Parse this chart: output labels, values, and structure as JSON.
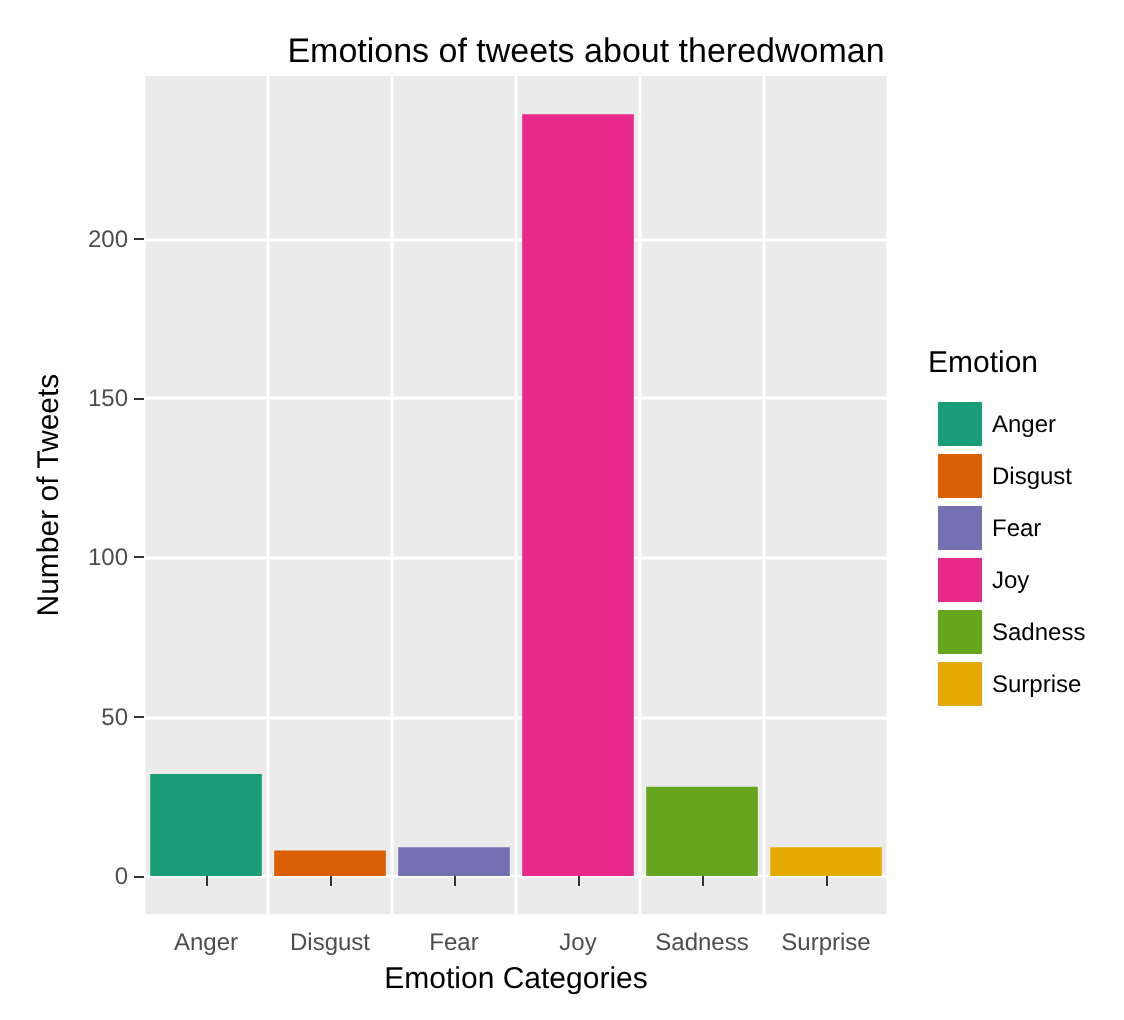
{
  "chart_data": {
    "type": "bar",
    "title": "Emotions of tweets about theredwoman",
    "xlabel": "Emotion Categories",
    "ylabel": "Number of Tweets",
    "legend_title": "Emotion",
    "categories": [
      "Anger",
      "Disgust",
      "Fear",
      "Joy",
      "Sadness",
      "Surprise"
    ],
    "series": [
      {
        "name": "Anger",
        "color": "#1b9e77",
        "values": [
          32,
          null,
          null,
          null,
          null,
          null
        ]
      },
      {
        "name": "Disgust",
        "color": "#d95f02",
        "values": [
          null,
          8,
          null,
          null,
          null,
          null
        ]
      },
      {
        "name": "Fear",
        "color": "#7570b3",
        "values": [
          null,
          null,
          9,
          null,
          null,
          null
        ]
      },
      {
        "name": "Joy",
        "color": "#e7298a",
        "values": [
          null,
          null,
          null,
          239,
          null,
          null
        ]
      },
      {
        "name": "Sadness",
        "color": "#66a61e",
        "values": [
          null,
          null,
          null,
          null,
          28,
          null
        ]
      },
      {
        "name": "Surprise",
        "color": "#e6ab02",
        "values": [
          null,
          null,
          null,
          null,
          null,
          9
        ]
      }
    ],
    "ylim": [
      -12,
      251
    ],
    "yticks": [
      0,
      50,
      100,
      150,
      200
    ],
    "grid": true,
    "legend": "right"
  }
}
